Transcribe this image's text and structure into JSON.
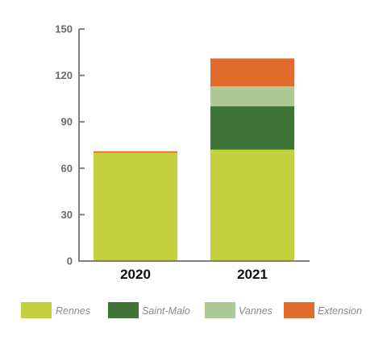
{
  "chart_data": {
    "type": "bar",
    "stacked": true,
    "categories": [
      "2020",
      "2021"
    ],
    "series": [
      {
        "name": "Rennes",
        "color": "#c3d13f",
        "values": [
          70,
          72
        ]
      },
      {
        "name": "Saint-Malo",
        "color": "#3f7436",
        "values": [
          0,
          28
        ]
      },
      {
        "name": "Vannes",
        "color": "#adc996",
        "values": [
          0,
          13
        ]
      },
      {
        "name": "Extension",
        "color": "#e06b2c",
        "values": [
          1,
          18
        ]
      }
    ],
    "ylim": [
      0,
      150
    ],
    "yticks": [
      0,
      30,
      60,
      90,
      120,
      150
    ],
    "grid": false,
    "legend_position": "bottom",
    "axis_color": "#808080"
  }
}
